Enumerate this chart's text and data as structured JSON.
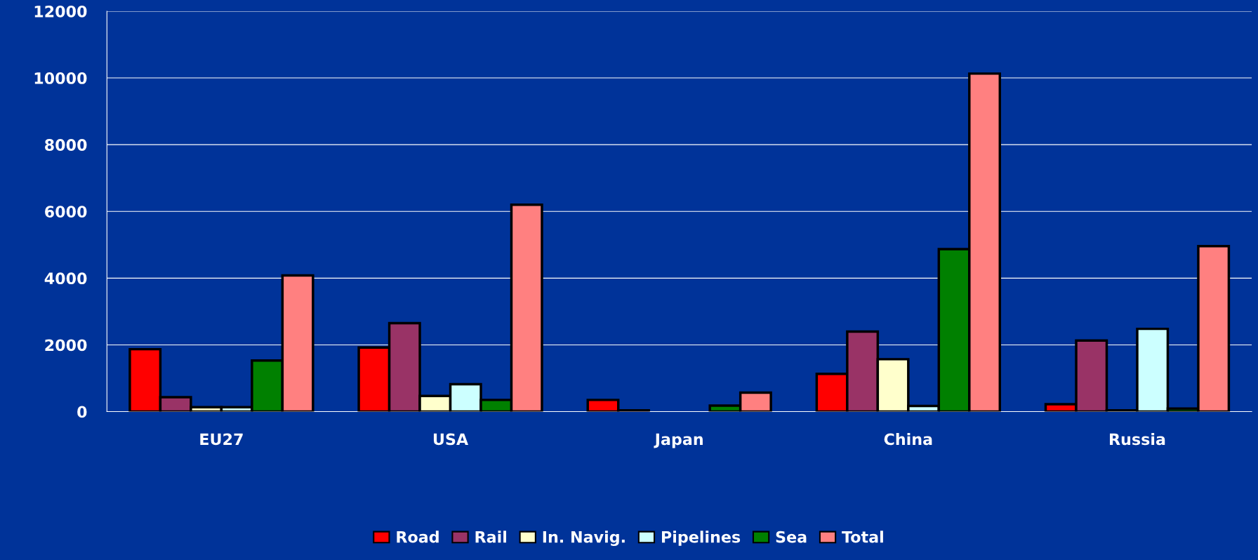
{
  "chart_data": {
    "type": "bar",
    "categories": [
      "EU27",
      "USA",
      "Japan",
      "China",
      "Russia"
    ],
    "series": [
      {
        "name": "Road",
        "color": "#ff0000",
        "values": [
          1870,
          1920,
          350,
          1130,
          220
        ]
      },
      {
        "name": "Rail",
        "color": "#993366",
        "values": [
          430,
          2650,
          40,
          2400,
          2130
        ]
      },
      {
        "name": "In. Navig.",
        "color": "#ffffcc",
        "values": [
          130,
          470,
          null,
          1570,
          40
        ]
      },
      {
        "name": "Pipelines",
        "color": "#ccffff",
        "values": [
          130,
          820,
          null,
          170,
          2480
        ]
      },
      {
        "name": "Sea",
        "color": "#008000",
        "values": [
          1530,
          350,
          180,
          4870,
          90
        ]
      },
      {
        "name": "Total",
        "color": "#ff8080",
        "values": [
          4080,
          6200,
          570,
          10130,
          4960
        ]
      }
    ],
    "ylim": [
      0,
      12000
    ],
    "yticks": [
      0,
      2000,
      4000,
      6000,
      8000,
      10000,
      12000
    ],
    "grid": "y",
    "legend": "bottom"
  }
}
